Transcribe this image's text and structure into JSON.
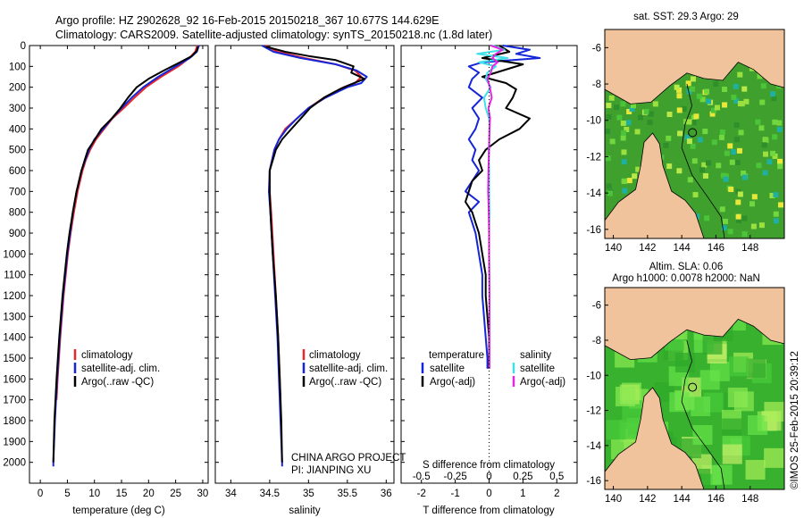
{
  "header": {
    "line1": "Argo profile: HZ 2902628_92 16-Feb-2015 20150218_367 10.677S 144.629E",
    "line2": "Climatology: CARS2009. Satellite-adjusted climatology: synTS_20150218.nc (1.8d later)"
  },
  "colors": {
    "red": "#e8262c",
    "blue": "#1525d8",
    "black": "#000000",
    "cyan": "#3fe0e8",
    "magenta": "#e426e0",
    "land": "#f1c39c",
    "sea_bg": "#3fa02e"
  },
  "chart_data": [
    {
      "type": "line",
      "id": "temperature",
      "xlabel": "temperature (deg C)",
      "ylabel": "",
      "xlim": [
        -2,
        31
      ],
      "ylim": [
        2100,
        0
      ],
      "xticks": [
        0,
        5,
        10,
        15,
        20,
        25,
        30
      ],
      "xtick_labels": [
        "0",
        "5",
        "10",
        "15",
        "20",
        "25",
        "30"
      ],
      "yticks": [
        0,
        100,
        200,
        300,
        400,
        500,
        600,
        700,
        800,
        900,
        1000,
        1100,
        1200,
        1300,
        1400,
        1500,
        1600,
        1700,
        1800,
        1900,
        2000
      ],
      "ytick_labels": [
        "0",
        "100",
        "200",
        "300",
        "400",
        "500",
        "600",
        "700",
        "800",
        "900",
        "1000",
        "1100",
        "1200",
        "1300",
        "1400",
        "1500",
        "1600",
        "1700",
        "1800",
        "1900",
        "2000"
      ],
      "legend": [
        "climatology",
        "satellite-adj. clim.",
        "Argo(..raw -QC)"
      ],
      "series": [
        {
          "name": "climatology",
          "color": "#e8262c",
          "depth": [
            0,
            30,
            60,
            100,
            150,
            200,
            250,
            300,
            350,
            400,
            450,
            500,
            550,
            600,
            700,
            800,
            900,
            1000,
            1200,
            1400,
            1600,
            1700
          ],
          "values": [
            29.0,
            28.6,
            27.5,
            25.5,
            22.3,
            19.5,
            17.4,
            15.4,
            13.3,
            11.8,
            10.3,
            9.2,
            8.4,
            7.8,
            6.9,
            6.2,
            5.6,
            5.1,
            4.3,
            3.7,
            3.2,
            3.0
          ]
        },
        {
          "name": "satellite-adj. clim.",
          "color": "#1525d8",
          "depth": [
            0,
            30,
            60,
            100,
            150,
            200,
            250,
            300,
            350,
            400,
            450,
            500,
            550,
            600,
            700,
            800,
            900,
            1000,
            1200,
            1400,
            1600,
            1800,
            2000,
            2020
          ],
          "values": [
            29.3,
            28.9,
            27.6,
            25.0,
            21.8,
            19.0,
            16.9,
            15.0,
            13.2,
            11.6,
            10.0,
            9.0,
            8.3,
            7.6,
            6.7,
            6.0,
            5.5,
            5.0,
            4.2,
            3.6,
            3.1,
            2.7,
            2.4,
            2.4
          ]
        },
        {
          "name": "Argo(..raw -QC)",
          "color": "#000000",
          "depth": [
            5,
            25,
            50,
            80,
            120,
            160,
            200,
            250,
            300,
            350,
            400,
            450,
            500,
            550,
            600,
            700,
            800,
            900,
            1000,
            1200,
            1400,
            1600,
            1800,
            2000
          ],
          "values": [
            29.1,
            28.9,
            28.0,
            25.8,
            22.8,
            20.0,
            17.8,
            16.2,
            14.8,
            13.2,
            11.3,
            10.1,
            8.8,
            8.2,
            7.6,
            6.7,
            6.0,
            5.4,
            4.9,
            4.1,
            3.5,
            3.0,
            2.6,
            2.4
          ]
        }
      ]
    },
    {
      "type": "line",
      "id": "salinity",
      "xlabel": "salinity",
      "ylabel": "",
      "xlim": [
        33.8,
        36.1
      ],
      "ylim": [
        2100,
        0
      ],
      "xticks": [
        34,
        34.5,
        35,
        35.5,
        36
      ],
      "xtick_labels": [
        "34",
        "34.5",
        "35",
        "35.5",
        "36"
      ],
      "legend": [
        "climatology",
        "satellite-adj. clim.",
        "Argo(..raw -QC)"
      ],
      "annotation": [
        "CHINA ARGO PROJECT",
        "PI: JIANPING XU"
      ],
      "series": [
        {
          "name": "climatology",
          "color": "#e8262c",
          "depth": [
            0,
            30,
            60,
            90,
            120,
            150,
            180,
            200,
            250,
            300,
            350,
            400,
            450,
            500,
            600,
            700,
            800,
            1000,
            1200,
            1400,
            1600,
            1700
          ],
          "values": [
            34.45,
            34.6,
            34.95,
            35.35,
            35.6,
            35.68,
            35.6,
            35.45,
            35.2,
            35.0,
            34.85,
            34.7,
            34.62,
            34.56,
            34.5,
            34.5,
            34.52,
            34.55,
            34.58,
            34.61,
            34.63,
            34.64
          ]
        },
        {
          "name": "satellite-adj. clim.",
          "color": "#1525d8",
          "depth": [
            0,
            30,
            60,
            90,
            120,
            150,
            180,
            200,
            250,
            300,
            350,
            400,
            450,
            500,
            600,
            700,
            800,
            1000,
            1200,
            1400,
            1600,
            1800,
            2000,
            2020
          ],
          "values": [
            34.4,
            34.55,
            34.9,
            35.35,
            35.62,
            35.75,
            35.68,
            35.5,
            35.22,
            35.0,
            34.85,
            34.72,
            34.62,
            34.56,
            34.5,
            34.49,
            34.51,
            34.54,
            34.57,
            34.6,
            34.62,
            34.64,
            34.66,
            34.66
          ]
        },
        {
          "name": "Argo(..raw -QC)",
          "color": "#000000",
          "depth": [
            5,
            30,
            50,
            70,
            100,
            130,
            160,
            190,
            210,
            250,
            300,
            350,
            400,
            450,
            500,
            600,
            700,
            800,
            1000,
            1200,
            1400,
            1600,
            1800,
            2000
          ],
          "values": [
            34.45,
            34.7,
            35.0,
            35.35,
            35.58,
            35.55,
            35.72,
            35.52,
            35.4,
            35.2,
            35.02,
            34.9,
            34.78,
            34.66,
            34.58,
            34.5,
            34.5,
            34.51,
            34.54,
            34.58,
            34.61,
            34.63,
            34.65,
            34.66
          ]
        }
      ]
    },
    {
      "type": "line",
      "id": "difference",
      "xlabel": "T difference from climatology",
      "xlabel_top": "S difference from climatology",
      "xlim": [
        -2.6,
        2.6
      ],
      "ylim": [
        2100,
        0
      ],
      "xticks": [
        -2,
        -1,
        0,
        1,
        2
      ],
      "xtick_labels": [
        "-2",
        "-1",
        "0",
        "1",
        "2"
      ],
      "s_ticks": [
        -0.5,
        -0.25,
        0,
        0.25,
        0.5
      ],
      "s_tick_labels": [
        "-0.5",
        "-0.25",
        "0",
        "0.25",
        "0.5"
      ],
      "legend_temperature": [
        "temperature",
        "satellite",
        "Argo(-adj)"
      ],
      "legend_salinity": [
        "salinity",
        "satellite",
        "Argo(-adj)"
      ],
      "series": [
        {
          "name": "T satellite",
          "color": "#1525d8",
          "depth": [
            0,
            20,
            40,
            60,
            80,
            100,
            130,
            160,
            200,
            250,
            300,
            350,
            400,
            450,
            500,
            550,
            600,
            650,
            700,
            750,
            800,
            850,
            900,
            1000,
            1100,
            1200,
            1300,
            1400,
            1500,
            1550
          ],
          "values": [
            0.4,
            1.2,
            0.8,
            1.5,
            -0.2,
            -0.6,
            -0.3,
            -0.5,
            -0.6,
            -0.2,
            -0.5,
            -0.3,
            -0.4,
            -0.6,
            -0.4,
            -0.5,
            -0.3,
            -0.5,
            -0.7,
            -0.3,
            -0.6,
            -0.5,
            -0.4,
            -0.3,
            -0.2,
            -0.2,
            -0.15,
            -0.1,
            -0.05,
            -0.05
          ]
        },
        {
          "name": "T Argo(-adj)",
          "color": "#000000",
          "depth": [
            0,
            30,
            60,
            90,
            120,
            150,
            180,
            210,
            250,
            300,
            350,
            400,
            450,
            500,
            550,
            600,
            650,
            700,
            750,
            800,
            850,
            900,
            1000,
            1100,
            1200,
            1300,
            1400,
            1500,
            1550
          ],
          "values": [
            0.3,
            0.6,
            -0.2,
            1.0,
            0.4,
            -0.2,
            0.5,
            0.8,
            0.7,
            0.5,
            1.2,
            0.9,
            0.3,
            -0.1,
            -0.3,
            -0.2,
            -0.5,
            -0.6,
            -0.7,
            -0.5,
            -0.4,
            -0.3,
            -0.2,
            -0.1,
            -0.1,
            -0.05,
            0,
            0,
            0
          ]
        },
        {
          "name": "S satellite",
          "color": "#3fe0e8",
          "depth": [
            0,
            20,
            40,
            60,
            80,
            100,
            130,
            160,
            200,
            250,
            300,
            350,
            400,
            500,
            600,
            700,
            800,
            900,
            1000,
            1200,
            1400,
            1550
          ],
          "values": [
            0.1,
            0.45,
            -0.35,
            0.55,
            -0.3,
            0.2,
            -0.05,
            -0.1,
            0.05,
            -0.15,
            -0.1,
            0.0,
            0.02,
            -0.01,
            0.0,
            0.0,
            0.01,
            0.0,
            0.0,
            0.01,
            0.01,
            0.01
          ]
        },
        {
          "name": "S Argo(-adj)",
          "color": "#e426e0",
          "depth": [
            0,
            20,
            40,
            60,
            80,
            100,
            130,
            160,
            200,
            250,
            300,
            350,
            400,
            500,
            600,
            700,
            800,
            900,
            1000,
            1200,
            1400,
            1550
          ],
          "values": [
            0.05,
            0.4,
            0.2,
            0.1,
            0.25,
            0.1,
            0.05,
            -0.05,
            0.02,
            0.08,
            -0.02,
            0.03,
            0.01,
            0.0,
            -0.02,
            -0.03,
            -0.01,
            0.0,
            0.0,
            0.01,
            0.01,
            0.01
          ]
        }
      ]
    }
  ],
  "maps": {
    "sst": {
      "title": "sat. SST: 29.3 Argo: 29",
      "yticks": [
        "-6",
        "-8",
        "-10",
        "-12",
        "-14",
        "-16"
      ],
      "xticks": [
        "140",
        "142",
        "144",
        "146",
        "148"
      ]
    },
    "sla": {
      "title1": "Altim. SLA: 0.06",
      "title2": "Argo h1000: 0.0078 h2000: NaN",
      "yticks": [
        "-6",
        "-8",
        "-10",
        "-12",
        "-14",
        "-16"
      ],
      "xticks": [
        "140",
        "142",
        "144",
        "146",
        "148"
      ]
    }
  },
  "credit": "©IMOS 25-Feb-2015 20:39:12"
}
